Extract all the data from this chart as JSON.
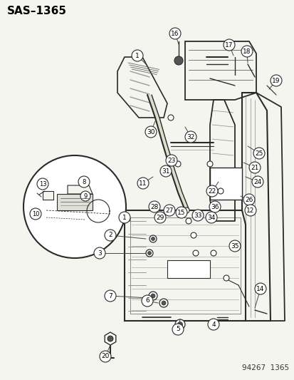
{
  "title": "SAS–1365",
  "footer": "94267  1365",
  "bg_color": "#f5f5f0",
  "title_fontsize": 11,
  "footer_fontsize": 7.5,
  "lc": "#2a2a2a",
  "lc_light": "#888888",
  "circle_r": 0.016
}
